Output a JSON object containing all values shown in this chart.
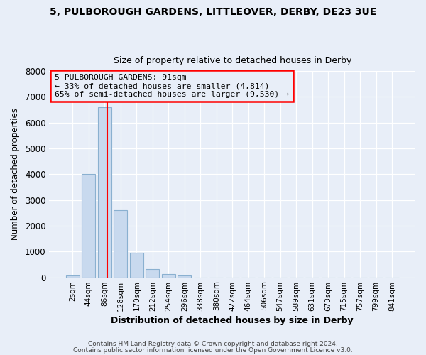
{
  "title_line1": "5, PULBOROUGH GARDENS, LITTLEOVER, DERBY, DE23 3UE",
  "title_line2": "Size of property relative to detached houses in Derby",
  "xlabel": "Distribution of detached houses by size in Derby",
  "ylabel": "Number of detached properties",
  "bar_labels": [
    "2sqm",
    "44sqm",
    "86sqm",
    "128sqm",
    "170sqm",
    "212sqm",
    "254sqm",
    "296sqm",
    "338sqm",
    "380sqm",
    "422sqm",
    "464sqm",
    "506sqm",
    "547sqm",
    "589sqm",
    "631sqm",
    "673sqm",
    "715sqm",
    "757sqm",
    "799sqm",
    "841sqm"
  ],
  "bar_values": [
    60,
    4000,
    6600,
    2600,
    950,
    320,
    130,
    80,
    0,
    0,
    0,
    0,
    0,
    0,
    0,
    0,
    0,
    0,
    0,
    0,
    0
  ],
  "bar_color": "#c8d9ee",
  "bar_edge_color": "#8ab0d0",
  "ylim": [
    0,
    8000
  ],
  "yticks": [
    0,
    1000,
    2000,
    3000,
    4000,
    5000,
    6000,
    7000,
    8000
  ],
  "annotation_line1": "5 PULBOROUGH GARDENS: 91sqm",
  "annotation_line2": "← 33% of detached houses are smaller (4,814)",
  "annotation_line3": "65% of semi-detached houses are larger (9,530) →",
  "vline_x_index": 2.18,
  "footer1": "Contains HM Land Registry data © Crown copyright and database right 2024.",
  "footer2": "Contains public sector information licensed under the Open Government Licence v3.0.",
  "background_color": "#e8eef8",
  "grid_color": "#ffffff"
}
